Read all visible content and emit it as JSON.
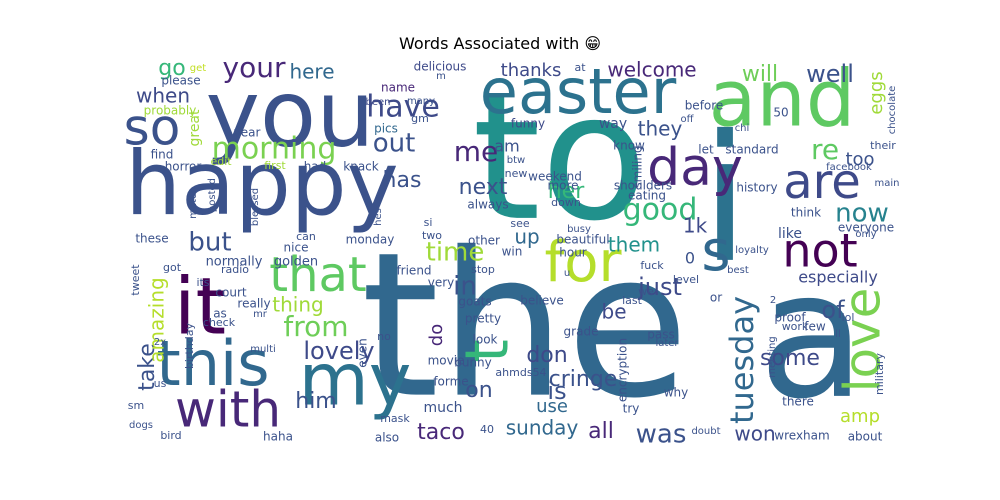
{
  "chart_data": {
    "type": "wordcloud",
    "title": "Words Associated with 😁",
    "words": [
      {
        "text": "the",
        "color": "#31688e"
      },
      {
        "text": "to",
        "color": "#21918c"
      },
      {
        "text": "a",
        "color": "#31688e"
      },
      {
        "text": "i",
        "color": "#2c728e"
      },
      {
        "text": "happy",
        "color": "#3b528b"
      },
      {
        "text": "you",
        "color": "#3b528b"
      },
      {
        "text": "and",
        "color": "#5ec962"
      },
      {
        "text": "easter",
        "color": "#2c728e"
      },
      {
        "text": "my",
        "color": "#2c728e"
      },
      {
        "text": "it",
        "color": "#440154"
      },
      {
        "text": "this",
        "color": "#31688e"
      },
      {
        "text": "with",
        "color": "#482878"
      },
      {
        "text": "for",
        "color": "#b5de2b"
      },
      {
        "text": "that",
        "color": "#5ec962"
      },
      {
        "text": "so",
        "color": "#3b528b"
      },
      {
        "text": "s",
        "color": "#31688e"
      },
      {
        "text": "not",
        "color": "#440154"
      },
      {
        "text": "are",
        "color": "#3e4a89"
      },
      {
        "text": "day",
        "color": "#482878"
      },
      {
        "text": "love",
        "color": "#7ad151"
      },
      {
        "text": "t",
        "color": "#35b779"
      },
      {
        "text": "tuesday",
        "color": "#31688e"
      },
      {
        "text": "morning",
        "color": "#7ad151"
      },
      {
        "text": "have",
        "color": "#3e4a89"
      },
      {
        "text": "from",
        "color": "#6ece58"
      },
      {
        "text": "me",
        "color": "#482878"
      },
      {
        "text": "good",
        "color": "#35b779"
      },
      {
        "text": "your",
        "color": "#482878"
      },
      {
        "text": "out",
        "color": "#3b528b"
      },
      {
        "text": "re",
        "color": "#5ec962"
      },
      {
        "text": "now",
        "color": "#26828e"
      },
      {
        "text": "but",
        "color": "#3b528b"
      },
      {
        "text": "time",
        "color": "#a0da39"
      },
      {
        "text": "in",
        "color": "#3b528b"
      },
      {
        "text": "lovely",
        "color": "#3e4a89"
      },
      {
        "text": "was",
        "color": "#3b528b"
      },
      {
        "text": "just",
        "color": "#3e4a89"
      },
      {
        "text": "will",
        "color": "#6ece58"
      },
      {
        "text": "well",
        "color": "#3b528b"
      },
      {
        "text": "thanks",
        "color": "#3e4a89"
      },
      {
        "text": "welcome",
        "color": "#482878"
      },
      {
        "text": "here",
        "color": "#31688e"
      },
      {
        "text": "go",
        "color": "#35b779"
      },
      {
        "text": "when",
        "color": "#3e4a89"
      },
      {
        "text": "they",
        "color": "#3b528b"
      },
      {
        "text": "has",
        "color": "#3b528b"
      },
      {
        "text": "next",
        "color": "#3b528b"
      },
      {
        "text": "her",
        "color": "#35b779"
      },
      {
        "text": "them",
        "color": "#21918c"
      },
      {
        "text": "1k",
        "color": "#3e4a89"
      },
      {
        "text": "up",
        "color": "#31688e"
      },
      {
        "text": "be",
        "color": "#3e4a89"
      },
      {
        "text": "of",
        "color": "#3b528b"
      },
      {
        "text": "some",
        "color": "#3e4a89"
      },
      {
        "text": "take",
        "color": "#3b528b"
      },
      {
        "text": "amazing",
        "color": "#b5de2b"
      },
      {
        "text": "don",
        "color": "#3e4a89"
      },
      {
        "text": "cringe",
        "color": "#3b528b"
      },
      {
        "text": "on",
        "color": "#3b528b"
      },
      {
        "text": "is",
        "color": "#3b528b"
      },
      {
        "text": "use",
        "color": "#31688e"
      },
      {
        "text": "him",
        "color": "#3b528b"
      },
      {
        "text": "taco",
        "color": "#482878"
      },
      {
        "text": "sunday",
        "color": "#31688e"
      },
      {
        "text": "all",
        "color": "#482878"
      },
      {
        "text": "won",
        "color": "#3e4a89"
      },
      {
        "text": "amp",
        "color": "#b5de2b"
      },
      {
        "text": "thing",
        "color": "#a0da39"
      },
      {
        "text": "eggs",
        "color": "#a0da39"
      },
      {
        "text": "am",
        "color": "#3b528b"
      },
      {
        "text": "too",
        "color": "#3b528b"
      },
      {
        "text": "especially",
        "color": "#3e4a89"
      },
      {
        "text": "like",
        "color": "#3b528b"
      },
      {
        "text": "do",
        "color": "#482878"
      },
      {
        "text": "0",
        "color": "#3b528b"
      },
      {
        "text": "delicious",
        "color": "#3e4a89"
      },
      {
        "text": "get",
        "color": "#c2df23"
      },
      {
        "text": "please",
        "color": "#3b528b"
      },
      {
        "text": "probably",
        "color": "#a0da39"
      },
      {
        "text": "find",
        "color": "#3b528b"
      },
      {
        "text": "horror",
        "color": "#3b528b"
      },
      {
        "text": "great",
        "color": "#a0da39"
      },
      {
        "text": "year",
        "color": "#3b528b"
      },
      {
        "text": "edit",
        "color": "#a0da39"
      },
      {
        "text": "name",
        "color": "#482878"
      },
      {
        "text": "been",
        "color": "#3e4a89"
      },
      {
        "text": "gm",
        "color": "#3b528b"
      },
      {
        "text": "pics",
        "color": "#31688e"
      },
      {
        "text": "first",
        "color": "#a0da39"
      },
      {
        "text": "had",
        "color": "#3b528b"
      },
      {
        "text": "knack",
        "color": "#3b528b"
      },
      {
        "text": "funny",
        "color": "#3e4a89"
      },
      {
        "text": "btw",
        "color": "#3b528b"
      },
      {
        "text": "new",
        "color": "#3b528b"
      },
      {
        "text": "weekend",
        "color": "#3b528b"
      },
      {
        "text": "more",
        "color": "#3b528b"
      },
      {
        "text": "always",
        "color": "#3b528b"
      },
      {
        "text": "down",
        "color": "#3b528b"
      },
      {
        "text": "way",
        "color": "#3b528b"
      },
      {
        "text": "know",
        "color": "#3b528b"
      },
      {
        "text": "let",
        "color": "#3b528b"
      },
      {
        "text": "standard",
        "color": "#3b528b"
      },
      {
        "text": "smiling",
        "color": "#3b528b"
      },
      {
        "text": "shoulders",
        "color": "#3b528b"
      },
      {
        "text": "eating",
        "color": "#3b528b"
      },
      {
        "text": "beautiful",
        "color": "#3b528b"
      },
      {
        "text": "see",
        "color": "#3b528b"
      },
      {
        "text": "win",
        "color": "#3b528b"
      },
      {
        "text": "hour",
        "color": "#3b528b"
      },
      {
        "text": "other",
        "color": "#3b528b"
      },
      {
        "text": "two",
        "color": "#3b528b"
      },
      {
        "text": "si",
        "color": "#3b528b"
      },
      {
        "text": "can",
        "color": "#3b528b"
      },
      {
        "text": "nice",
        "color": "#3b528b"
      },
      {
        "text": "monday",
        "color": "#3b528b"
      },
      {
        "text": "golden",
        "color": "#3b528b"
      },
      {
        "text": "normally",
        "color": "#3b528b"
      },
      {
        "text": "radio",
        "color": "#3b528b"
      },
      {
        "text": "friend",
        "color": "#3b528b"
      },
      {
        "text": "very",
        "color": "#3b528b"
      },
      {
        "text": "stop",
        "color": "#3b528b"
      },
      {
        "text": "busy",
        "color": "#3b528b"
      },
      {
        "text": "fuck",
        "color": "#3b528b"
      },
      {
        "text": "we",
        "color": "#3b528b"
      },
      {
        "text": "last",
        "color": "#3b528b"
      },
      {
        "text": "level",
        "color": "#3b528b"
      },
      {
        "text": "goats",
        "color": "#3b528b"
      },
      {
        "text": "believe",
        "color": "#3b528b"
      },
      {
        "text": "pretty",
        "color": "#3b528b"
      },
      {
        "text": "look",
        "color": "#3b528b"
      },
      {
        "text": "grade",
        "color": "#3b528b"
      },
      {
        "text": "pass",
        "color": "#3b528b"
      },
      {
        "text": "later",
        "color": "#3b528b"
      },
      {
        "text": "movie",
        "color": "#3b528b"
      },
      {
        "text": "bunny",
        "color": "#3b528b"
      },
      {
        "text": "forme",
        "color": "#3b528b"
      },
      {
        "text": "ahmds54",
        "color": "#3b528b"
      },
      {
        "text": "encryption",
        "color": "#3b528b"
      },
      {
        "text": "try",
        "color": "#3b528b"
      },
      {
        "text": "why",
        "color": "#3b528b"
      },
      {
        "text": "much",
        "color": "#3b528b"
      },
      {
        "text": "doubt",
        "color": "#3b528b"
      },
      {
        "text": "40",
        "color": "#3b528b"
      },
      {
        "text": "also",
        "color": "#3b528b"
      },
      {
        "text": "mask",
        "color": "#3b528b"
      },
      {
        "text": "haha",
        "color": "#3b528b"
      },
      {
        "text": "bird",
        "color": "#3b528b"
      },
      {
        "text": "dogs",
        "color": "#3b528b"
      },
      {
        "text": "sm",
        "color": "#3b528b"
      },
      {
        "text": "us",
        "color": "#3b528b"
      },
      {
        "text": "2x",
        "color": "#3b528b"
      },
      {
        "text": "tweet",
        "color": "#3b528b"
      },
      {
        "text": "got",
        "color": "#3b528b"
      },
      {
        "text": "its",
        "color": "#3b528b"
      },
      {
        "text": "court",
        "color": "#3b528b"
      },
      {
        "text": "mr",
        "color": "#3b528b"
      },
      {
        "text": "check",
        "color": "#3b528b"
      },
      {
        "text": "multi",
        "color": "#3b528b"
      },
      {
        "text": "no",
        "color": "#3b528b"
      },
      {
        "text": "even",
        "color": "#3b528b"
      },
      {
        "text": "really",
        "color": "#3b528b"
      },
      {
        "text": "as",
        "color": "#3b528b"
      },
      {
        "text": "birthday",
        "color": "#3b528b"
      },
      {
        "text": "posted",
        "color": "#3b528b"
      },
      {
        "text": "match",
        "color": "#3b528b"
      },
      {
        "text": "blessed",
        "color": "#3b528b"
      },
      {
        "text": "hes",
        "color": "#3b528b"
      },
      {
        "text": "these",
        "color": "#3b528b"
      },
      {
        "text": "many",
        "color": "#3b528b"
      },
      {
        "text": "at",
        "color": "#3b528b"
      },
      {
        "text": "m",
        "color": "#3b528b"
      },
      {
        "text": "off",
        "color": "#3b528b"
      },
      {
        "text": "before",
        "color": "#3b528b"
      },
      {
        "text": "50",
        "color": "#3b528b"
      },
      {
        "text": "chi",
        "color": "#3b528b"
      },
      {
        "text": "chocolate",
        "color": "#3b528b"
      },
      {
        "text": "their",
        "color": "#3b528b"
      },
      {
        "text": "facebook",
        "color": "#3b528b"
      },
      {
        "text": "main",
        "color": "#3b528b"
      },
      {
        "text": "history",
        "color": "#3b528b"
      },
      {
        "text": "think",
        "color": "#3b528b"
      },
      {
        "text": "everyone",
        "color": "#3b528b"
      },
      {
        "text": "only",
        "color": "#3b528b"
      },
      {
        "text": "loyalty",
        "color": "#3b528b"
      },
      {
        "text": "best",
        "color": "#3b528b"
      },
      {
        "text": "u",
        "color": "#3b528b"
      },
      {
        "text": "or",
        "color": "#3b528b"
      },
      {
        "text": "2",
        "color": "#3b528b"
      },
      {
        "text": "work",
        "color": "#3b528b"
      },
      {
        "text": "lol",
        "color": "#3b528b"
      },
      {
        "text": "proof",
        "color": "#3b528b"
      },
      {
        "text": "few",
        "color": "#3b528b"
      },
      {
        "text": "ll",
        "color": "#3b528b"
      },
      {
        "text": "meeting",
        "color": "#3b528b"
      },
      {
        "text": "military",
        "color": "#3b528b"
      },
      {
        "text": "there",
        "color": "#3b528b"
      },
      {
        "text": "wrexham",
        "color": "#3b528b"
      },
      {
        "text": "about",
        "color": "#3b528b"
      }
    ]
  }
}
